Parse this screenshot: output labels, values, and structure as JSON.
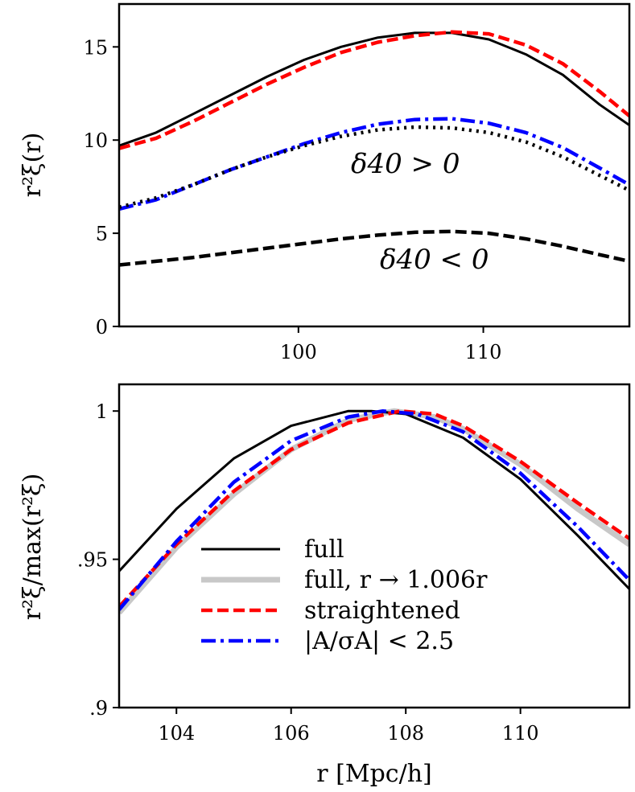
{
  "chart_data": [
    {
      "type": "line",
      "panel": "top",
      "xlabel": "",
      "ylabel": "r²ξ(r)",
      "xlim": [
        90.3,
        117.9
      ],
      "ylim": [
        0,
        17.3
      ],
      "xticks": [
        100,
        110
      ],
      "xtick_labels": [
        "100",
        "110"
      ],
      "yticks": [
        0,
        5,
        10,
        15
      ],
      "ytick_labels": [
        "0",
        "5",
        "10",
        "15"
      ],
      "annotations": [
        {
          "text": "δ40 > 0",
          "x": 106.2,
          "y": 8.8
        },
        {
          "text": "δ40 < 0",
          "x": 106.2,
          "y": 3.4
        }
      ],
      "series": [
        {
          "name": "full",
          "color": "#000000",
          "style": "solid",
          "x": [
            90.3,
            92.3,
            94.3,
            96.3,
            98.3,
            100.3,
            102.3,
            104.3,
            106.3,
            108.3,
            110.3,
            112.3,
            114.3,
            116.3,
            117.9
          ],
          "y": [
            9.7,
            10.4,
            11.4,
            12.4,
            13.4,
            14.3,
            15.0,
            15.5,
            15.75,
            15.75,
            15.4,
            14.6,
            13.5,
            11.9,
            10.8
          ]
        },
        {
          "name": "straightened",
          "color": "#ff0000",
          "style": "dashed",
          "x": [
            90.3,
            92.3,
            94.3,
            96.3,
            98.3,
            100.3,
            102.3,
            104.3,
            106.3,
            108.3,
            110.3,
            112.3,
            114.3,
            116.3,
            117.9
          ],
          "y": [
            9.55,
            10.1,
            11.0,
            12.0,
            13.0,
            13.9,
            14.7,
            15.25,
            15.6,
            15.8,
            15.7,
            15.1,
            14.1,
            12.6,
            11.3
          ]
        },
        {
          "name": "|A/σA| < 2.5 (δ40 > 0)",
          "color": "#0000ff",
          "style": "dashdot",
          "x": [
            90.3,
            92.3,
            94.3,
            96.3,
            98.3,
            100.3,
            102.3,
            104.3,
            106.3,
            108.3,
            110.3,
            112.3,
            114.3,
            116.3,
            117.9
          ],
          "y": [
            6.3,
            6.8,
            7.6,
            8.4,
            9.1,
            9.8,
            10.4,
            10.85,
            11.1,
            11.15,
            10.9,
            10.4,
            9.6,
            8.5,
            7.6
          ]
        },
        {
          "name": "full (δ40 > 0)",
          "color": "#000000",
          "style": "dotted",
          "x": [
            90.3,
            92.3,
            94.3,
            96.3,
            98.3,
            100.3,
            102.3,
            104.3,
            106.3,
            108.3,
            110.3,
            112.3,
            114.3,
            116.3,
            117.9
          ],
          "y": [
            6.4,
            6.9,
            7.6,
            8.4,
            9.1,
            9.7,
            10.2,
            10.55,
            10.7,
            10.65,
            10.4,
            9.9,
            9.1,
            8.1,
            7.3
          ]
        },
        {
          "name": "full (δ40 < 0)",
          "color": "#000000",
          "style": "dashed",
          "x": [
            90.3,
            92.3,
            94.3,
            96.3,
            98.3,
            100.3,
            102.3,
            104.3,
            106.3,
            108.3,
            110.3,
            112.3,
            114.3,
            116.3,
            117.9
          ],
          "y": [
            3.3,
            3.5,
            3.7,
            3.95,
            4.2,
            4.45,
            4.7,
            4.9,
            5.05,
            5.1,
            5.0,
            4.7,
            4.3,
            3.85,
            3.5
          ]
        }
      ]
    },
    {
      "type": "line",
      "panel": "bottom",
      "xlabel": "r [Mpc/h]",
      "ylabel": "r²ξ/max(r²ξ)",
      "xlim": [
        103.0,
        111.9
      ],
      "ylim": [
        0.9,
        1.009
      ],
      "xticks": [
        104,
        106,
        108,
        110
      ],
      "xtick_labels": [
        "104",
        "106",
        "108",
        "110"
      ],
      "yticks": [
        0.9,
        0.95,
        1.0
      ],
      "ytick_labels": [
        ".9",
        ".95",
        "1"
      ],
      "legend": {
        "position": "lower-left",
        "entries": [
          {
            "label": "full",
            "color": "#000000",
            "style": "solid"
          },
          {
            "label": "full,  r → 1.006r",
            "color": "#c8c8c8",
            "style": "solid-thick"
          },
          {
            "label": "straightened",
            "color": "#ff0000",
            "style": "dashed"
          },
          {
            "label": "|A/σA| < 2.5",
            "color": "#0000ff",
            "style": "dashdot"
          }
        ]
      },
      "series": [
        {
          "name": "full, r → 1.006r",
          "color": "#c8c8c8",
          "style": "solid-thick",
          "x": [
            103.0,
            104.0,
            105.0,
            106.0,
            107.0,
            107.8,
            108.5,
            109.0,
            110.0,
            111.0,
            111.9
          ],
          "y": [
            0.932,
            0.954,
            0.972,
            0.987,
            0.997,
            1.0,
            0.998,
            0.994,
            0.982,
            0.967,
            0.955
          ]
        },
        {
          "name": "full",
          "color": "#000000",
          "style": "solid",
          "x": [
            103.0,
            104.0,
            105.0,
            106.0,
            107.0,
            107.4,
            108.0,
            109.0,
            110.0,
            111.0,
            111.9
          ],
          "y": [
            0.946,
            0.967,
            0.984,
            0.995,
            1.0,
            1.0,
            0.999,
            0.991,
            0.977,
            0.958,
            0.94
          ]
        },
        {
          "name": "straightened",
          "color": "#ff0000",
          "style": "dashed",
          "x": [
            103.0,
            104.0,
            105.0,
            106.0,
            107.0,
            107.9,
            108.5,
            109.0,
            110.0,
            111.0,
            111.9
          ],
          "y": [
            0.934,
            0.955,
            0.973,
            0.987,
            0.996,
            1.0,
            0.999,
            0.995,
            0.983,
            0.969,
            0.957
          ]
        },
        {
          "name": "|A/σA| < 2.5",
          "color": "#0000ff",
          "style": "dashdot",
          "x": [
            103.0,
            104.0,
            105.0,
            106.0,
            107.0,
            107.6,
            108.2,
            109.0,
            110.0,
            111.0,
            111.9
          ],
          "y": [
            0.933,
            0.956,
            0.976,
            0.99,
            0.998,
            1.0,
            0.999,
            0.993,
            0.979,
            0.961,
            0.943
          ]
        }
      ]
    }
  ]
}
